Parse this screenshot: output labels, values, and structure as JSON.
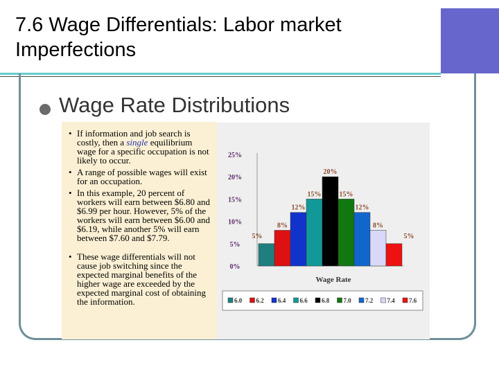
{
  "slide": {
    "title_line1": "7.6 Wage Differentials: Labor market",
    "title_line2": "Imperfections",
    "bullet": "Wage Rate Distributions",
    "colors": {
      "title_band": "#6666cc",
      "rule": "#66cccc",
      "frame": "#6f8f9a",
      "text_panel": "#fbf0d4"
    }
  },
  "text_panel": {
    "p1a": "If information and job search is costly, then a ",
    "p1_italic": "single",
    "p1b": " equilibrium wage for a specific occupation is not likely to occur.",
    "p2": "A range of possible wages will exist for an occupation.",
    "p3": "In this example, 20 percent of workers will earn between $6.80 and $6.99 per hour. However, 5% of the workers will earn between $6.00 and $6.19, while another 5% will earn between $7.60 and $7.79.",
    "p4": "These wage differentials will not cause job switching since the expected marginal benefits of the higher wage are exceeded by the expected marginal cost of obtaining the information."
  },
  "chart_data": {
    "type": "bar",
    "title": "",
    "xlabel": "Wage Rate",
    "ylabel": "",
    "categories": [
      "6.0",
      "6.2",
      "6.4",
      "6.6",
      "6.8",
      "7.0",
      "7.2",
      "7.4",
      "7.6"
    ],
    "values": [
      5,
      8,
      12,
      15,
      20,
      15,
      12,
      8,
      5
    ],
    "data_labels": [
      "5%",
      "8%",
      "12%",
      "15%",
      "20%",
      "15%",
      "12%",
      "8%",
      "5%"
    ],
    "colors": [
      "#1f7f7f",
      "#dd1111",
      "#1133cc",
      "#119999",
      "#000000",
      "#117711",
      "#1166cc",
      "#d8d8f8",
      "#ee1111"
    ],
    "yticks": [
      "0%",
      "5%",
      "10%",
      "15%",
      "20%",
      "25%"
    ],
    "ylim": [
      0,
      25
    ],
    "grid": false,
    "legend": "bottom"
  }
}
